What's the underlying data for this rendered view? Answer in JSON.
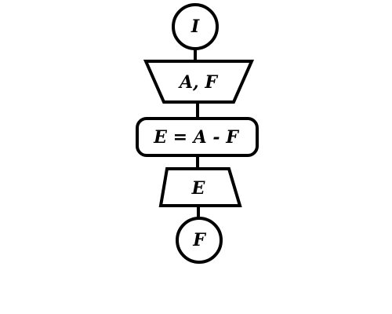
{
  "diagram": {
    "nodes": [
      {
        "id": "start",
        "shape": "circle",
        "label": "I"
      },
      {
        "id": "input",
        "shape": "trapezoid-inverted",
        "label": "A, F"
      },
      {
        "id": "process",
        "shape": "rounded-rectangle",
        "label": "E = A - F"
      },
      {
        "id": "output",
        "shape": "trapezoid",
        "label": "E"
      },
      {
        "id": "end",
        "shape": "circle",
        "label": "F"
      }
    ],
    "edges": [
      {
        "from": "start",
        "to": "input"
      },
      {
        "from": "input",
        "to": "process"
      },
      {
        "from": "process",
        "to": "output"
      },
      {
        "from": "output",
        "to": "end"
      }
    ],
    "colors": {
      "stroke": "#000000",
      "fill": "#ffffff",
      "background": "#ffffff"
    }
  }
}
